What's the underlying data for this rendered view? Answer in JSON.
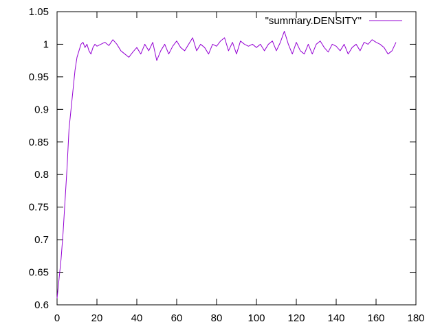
{
  "chart_data": {
    "type": "line",
    "title": "",
    "xlabel": "",
    "ylabel": "",
    "xlim": [
      0,
      180
    ],
    "ylim": [
      0.6,
      1.05
    ],
    "x_ticks": [
      0,
      20,
      40,
      60,
      80,
      100,
      120,
      140,
      160,
      180
    ],
    "y_ticks": [
      0.6,
      0.65,
      0.7,
      0.75,
      0.8,
      0.85,
      0.9,
      0.95,
      1,
      1.05
    ],
    "x_tick_labels": [
      "0",
      "20",
      "40",
      "60",
      "80",
      "100",
      "120",
      "140",
      "160",
      "180"
    ],
    "y_tick_labels": [
      "0.6",
      "0.65",
      "0.7",
      "0.75",
      "0.8",
      "0.85",
      "0.9",
      "0.95",
      "1",
      "1.05"
    ],
    "grid": false,
    "legend_position": "top-right",
    "series": [
      {
        "name": "\"summary.DENSITY\"",
        "color": "#9400d3",
        "x": [
          0,
          1,
          2,
          3,
          4,
          5,
          6,
          7,
          8,
          9,
          10,
          11,
          12,
          13,
          14,
          15,
          16,
          17,
          18,
          19,
          20,
          22,
          24,
          26,
          28,
          30,
          32,
          34,
          36,
          38,
          40,
          42,
          44,
          46,
          48,
          50,
          52,
          54,
          56,
          58,
          60,
          62,
          64,
          66,
          68,
          70,
          72,
          74,
          76,
          78,
          80,
          82,
          84,
          86,
          88,
          90,
          92,
          94,
          96,
          98,
          100,
          102,
          104,
          106,
          108,
          110,
          112,
          114,
          116,
          118,
          120,
          122,
          124,
          126,
          128,
          130,
          132,
          134,
          136,
          138,
          140,
          142,
          144,
          146,
          148,
          150,
          152,
          154,
          156,
          158,
          160,
          162,
          164,
          166,
          168,
          170
        ],
        "y": [
          0.61,
          0.64,
          0.67,
          0.71,
          0.76,
          0.81,
          0.87,
          0.9,
          0.93,
          0.96,
          0.98,
          0.99,
          1.0,
          1.003,
          0.995,
          1.0,
          0.99,
          0.985,
          0.995,
          1.0,
          0.997,
          1.0,
          1.003,
          0.998,
          1.007,
          1.0,
          0.99,
          0.985,
          0.98,
          0.988,
          0.995,
          0.985,
          1.0,
          0.99,
          1.003,
          0.975,
          0.99,
          1.0,
          0.985,
          0.997,
          1.005,
          0.995,
          0.99,
          1.0,
          1.01,
          0.99,
          1.0,
          0.995,
          0.985,
          1.0,
          0.997,
          1.005,
          1.01,
          0.99,
          1.003,
          0.985,
          1.005,
          1.0,
          0.997,
          1.0,
          0.995,
          1.0,
          0.99,
          1.0,
          1.005,
          0.99,
          1.003,
          1.02,
          1.0,
          0.985,
          1.003,
          0.99,
          0.985,
          1.0,
          0.985,
          1.0,
          1.005,
          0.995,
          0.988,
          1.0,
          0.997,
          0.99,
          1.0,
          0.985,
          0.995,
          1.0,
          0.99,
          1.003,
          1.0,
          1.007,
          1.003,
          1.0,
          0.995,
          0.985,
          0.99,
          1.003
        ]
      }
    ]
  }
}
